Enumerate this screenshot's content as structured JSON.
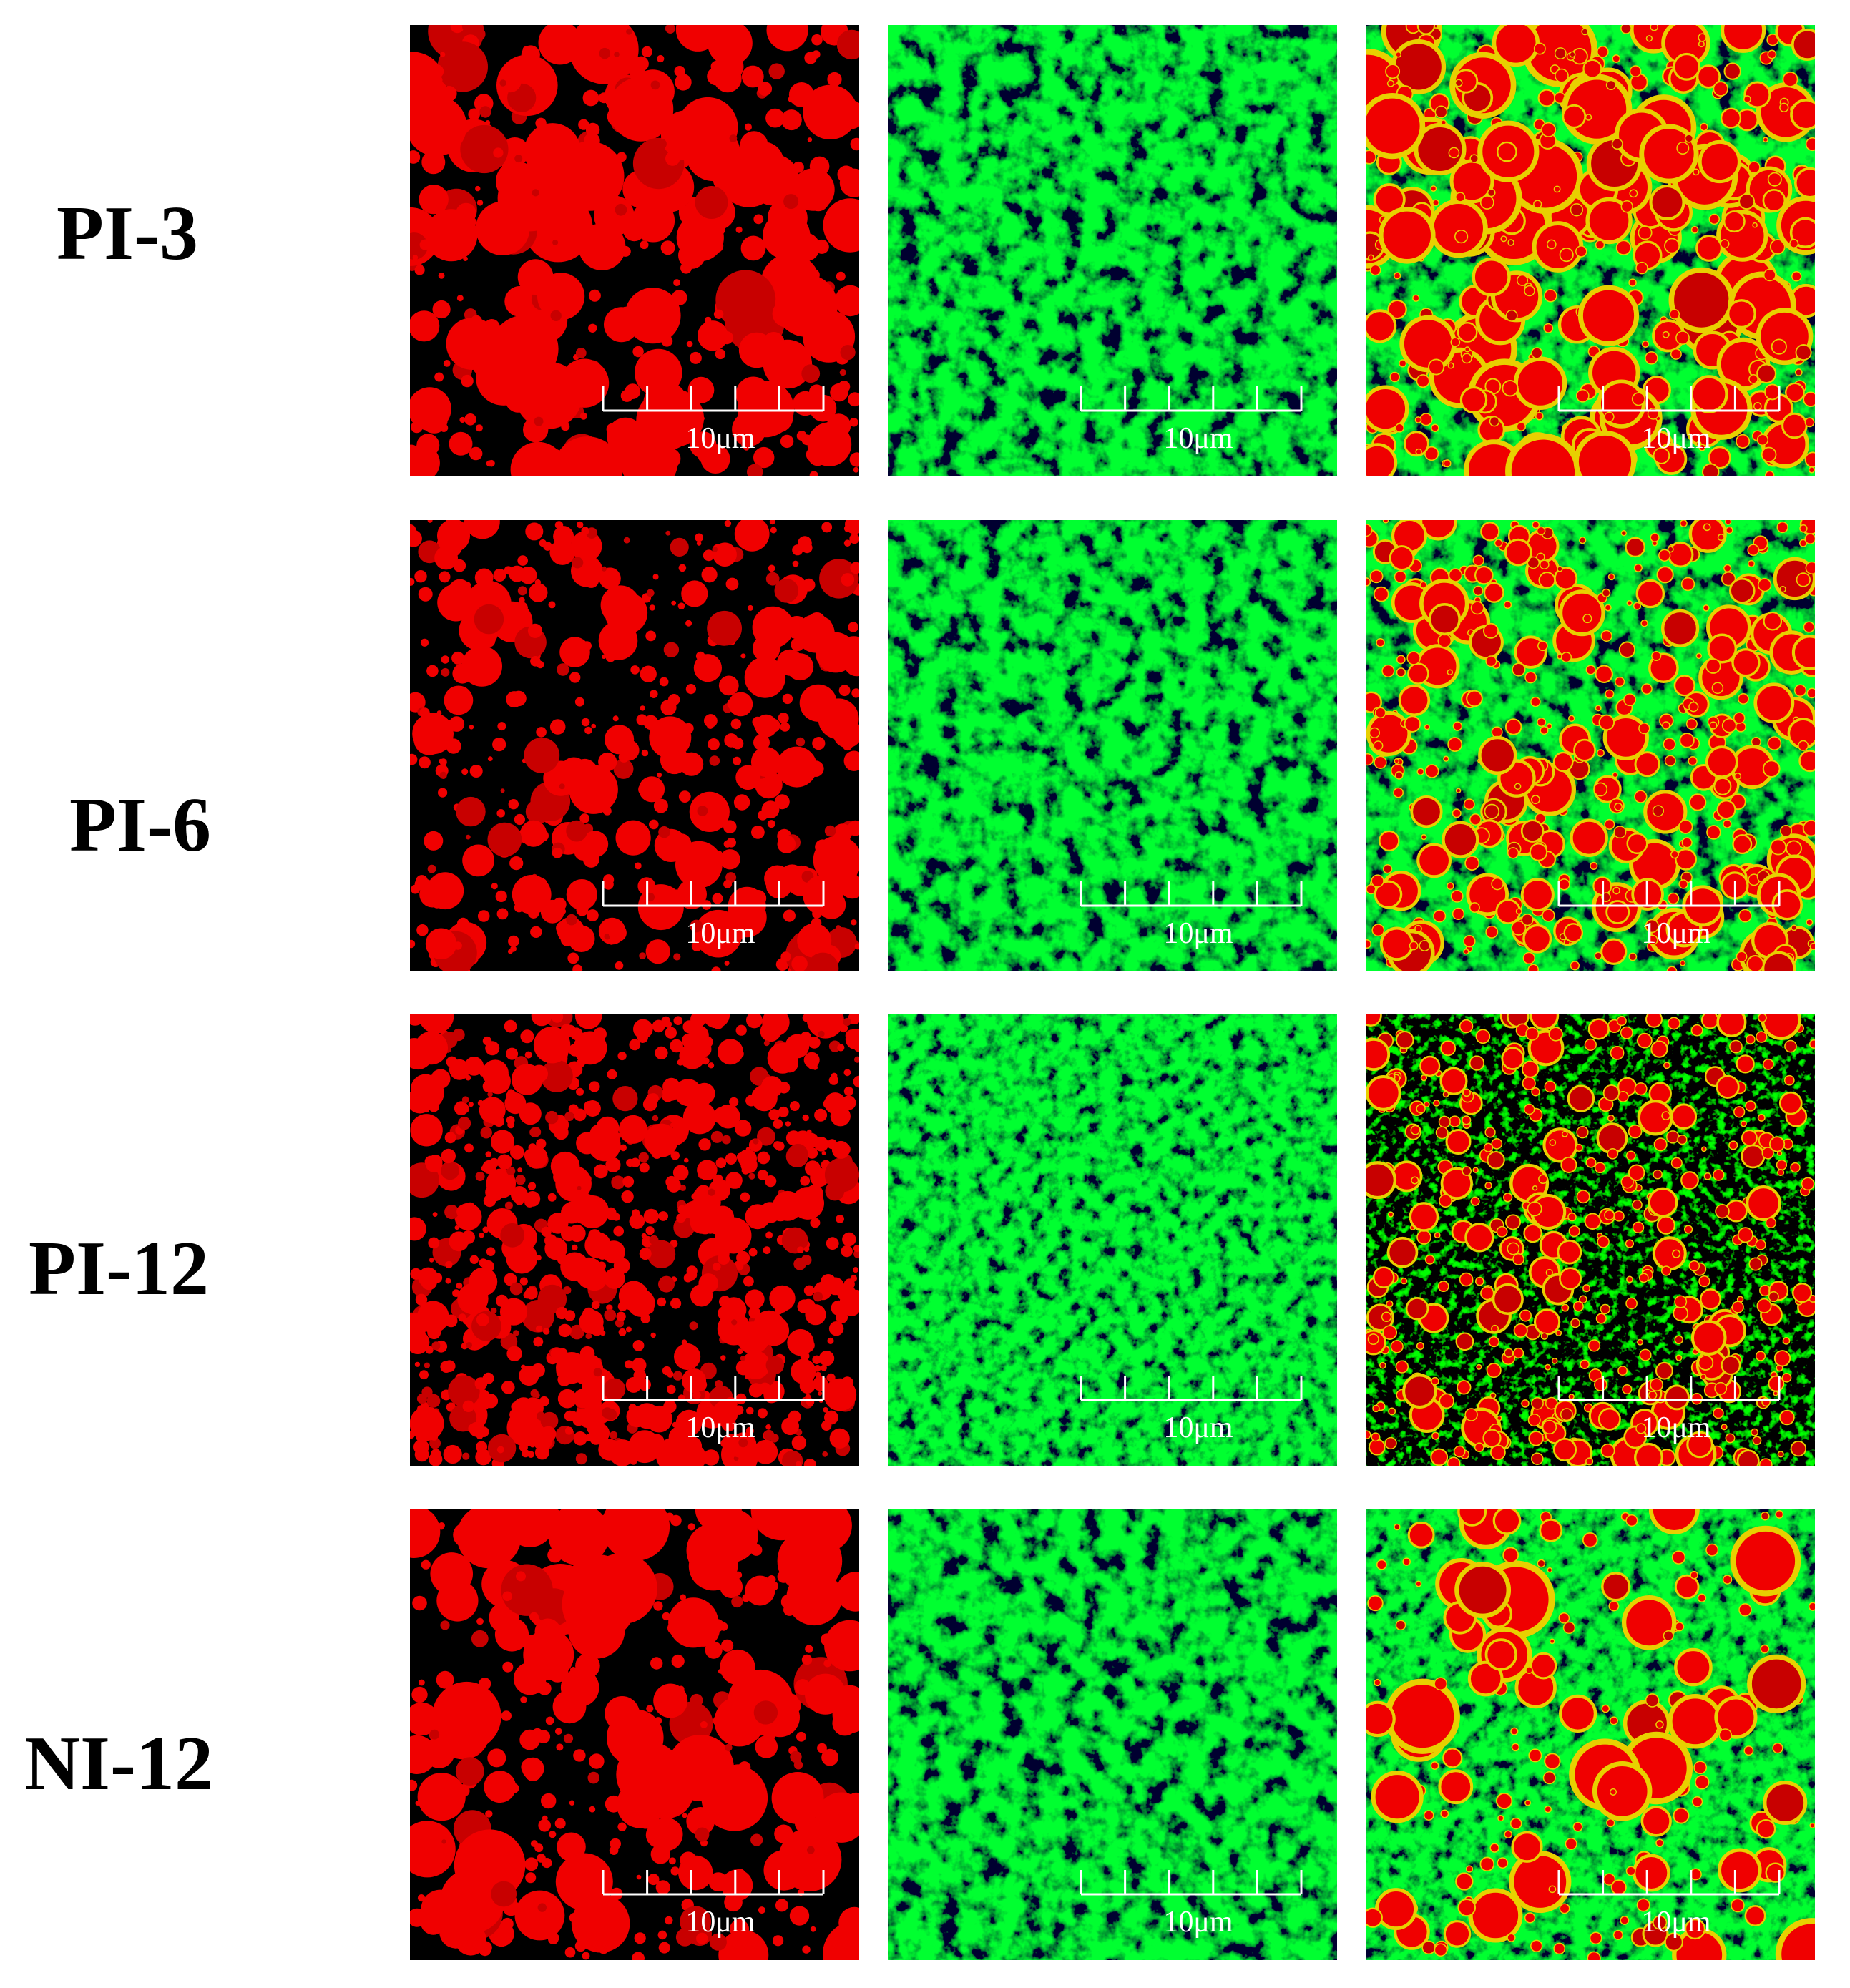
{
  "rows": [
    {
      "label": "PI-3",
      "panels": [
        {
          "scale_label": "10μm"
        },
        {
          "scale_label": "10μm"
        },
        {
          "scale_label": "10μm"
        }
      ]
    },
    {
      "label": "PI-6",
      "panels": [
        {
          "scale_label": "10μm"
        },
        {
          "scale_label": "10μm"
        },
        {
          "scale_label": "10μm"
        }
      ]
    },
    {
      "label": "PI-12",
      "panels": [
        {
          "scale_label": "10μm"
        },
        {
          "scale_label": "10μm"
        },
        {
          "scale_label": "10μm"
        }
      ]
    },
    {
      "label": "NI-12",
      "panels": [
        {
          "scale_label": "10μm"
        },
        {
          "scale_label": "10μm"
        },
        {
          "scale_label": "10μm"
        }
      ]
    }
  ]
}
